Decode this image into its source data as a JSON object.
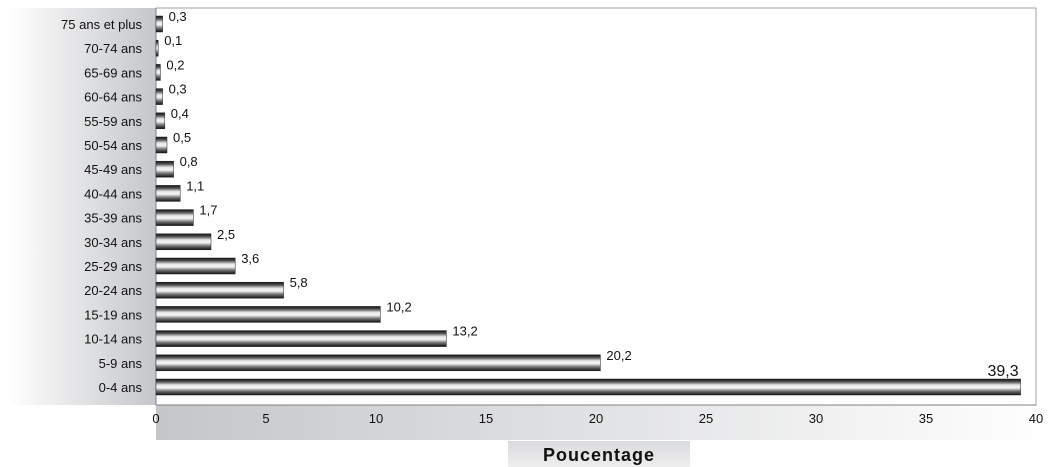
{
  "chart_data": {
    "type": "bar",
    "orientation": "horizontal",
    "categories": [
      "75 ans et plus",
      "70-74 ans",
      "65-69 ans",
      "60-64 ans",
      "55-59 ans",
      "50-54 ans",
      "45-49 ans",
      "40-44 ans",
      "35-39 ans",
      "30-34 ans",
      "25-29 ans",
      "20-24 ans",
      "15-19 ans",
      "10-14 ans",
      "5-9 ans",
      "0-4 ans"
    ],
    "values": [
      0.3,
      0.1,
      0.2,
      0.3,
      0.4,
      0.5,
      0.8,
      1.1,
      1.7,
      2.5,
      3.6,
      5.8,
      10.2,
      13.2,
      20.2,
      39.3
    ],
    "value_labels": [
      "0,3",
      "0,1",
      "0,2",
      "0,3",
      "0,4",
      "0,5",
      "0,8",
      "1,1",
      "1,7",
      "2,5",
      "3,6",
      "5,8",
      "10,2",
      "13,2",
      "20,2",
      "39,3"
    ],
    "xlabel": "Poucentage",
    "xlim": [
      0,
      40
    ],
    "xticks": [
      0,
      5,
      10,
      15,
      20,
      25,
      30,
      35,
      40
    ],
    "grid": false,
    "legend": "none",
    "colors": {
      "bar_dark": "#111111",
      "bar_light": "#e8e8e8",
      "panel_gray": "#c7c9cc",
      "plot_border": "#a0a0a0"
    }
  }
}
